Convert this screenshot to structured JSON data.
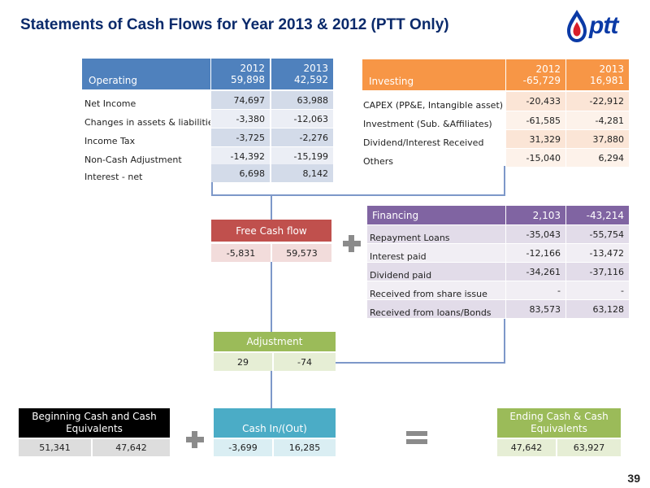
{
  "title": "Statements of Cash Flows for Year 2013 & 2012 (PTT Only)",
  "logo_text": "ptt",
  "page_number": "39",
  "colors": {
    "operating_header": "#4f81bd",
    "operating_row": "#d3dbe9",
    "investing_header": "#f79646",
    "investing_row": "#fbe5d6",
    "financing_header": "#8064a2",
    "financing_row": "#e2dce9",
    "fcf_header": "#c0504d",
    "fcf_row": "#f2dcdb",
    "adjustment_header": "#9bbb59",
    "adjustment_row": "#e6eed5",
    "begin_header": "#000000",
    "begin_row": "#dddddd",
    "cash_header": "#4bacc6",
    "cash_row": "#daeef3",
    "end_header": "#9bbb59",
    "end_row": "#e6eed5"
  },
  "operating": {
    "header": "Operating",
    "y2012_label": "2012",
    "y2012_total": "59,898",
    "y2013_label": "2013",
    "y2013_total": "42,592",
    "rows": [
      {
        "label": "Net Income",
        "v2012": "74,697",
        "v2013": "63,988"
      },
      {
        "label": "Changes in assets & liabilities",
        "v2012": "-3,380",
        "v2013": "-12,063"
      },
      {
        "label": "Income Tax",
        "v2012": "-3,725",
        "v2013": "-2,276"
      },
      {
        "label": "Non-Cash  Adjustment",
        "v2012": "-14,392",
        "v2013": "-15,199"
      },
      {
        "label": "Interest - net",
        "v2012": "6,698",
        "v2013": "8,142"
      }
    ]
  },
  "investing": {
    "header": "Investing",
    "y2012_label": "2012",
    "y2012_total": "-65,729",
    "y2013_label": "2013",
    "y2013_total": "16,981",
    "rows": [
      {
        "label": "CAPEX (PP&E, Intangible asset)",
        "v2012": "-20,433",
        "v2013": "-22,912"
      },
      {
        "label": "Investment (Sub. &Affiliates)",
        "v2012": "-61,585",
        "v2013": "-4,281"
      },
      {
        "label": "Dividend/Interest Received",
        "v2012": "31,329",
        "v2013": "37,880"
      },
      {
        "label": "Others",
        "v2012": "-15,040",
        "v2013": "6,294"
      }
    ]
  },
  "financing": {
    "header": "Financing",
    "v2012": "2,103",
    "v2013": "-43,214",
    "rows": [
      {
        "label": "Repayment  Loans",
        "v2012": "-35,043",
        "v2013": "-55,754"
      },
      {
        "label": "Interest paid",
        "v2012": "-12,166",
        "v2013": "-13,472"
      },
      {
        "label": "Dividend paid",
        "v2012": "-34,261",
        "v2013": "-37,116"
      },
      {
        "label": "Received from share issue",
        "v2012": "-",
        "v2013": "-"
      },
      {
        "label": "Received from loans/Bonds",
        "v2012": "83,573",
        "v2013": "63,128"
      }
    ]
  },
  "free_cash_flow": {
    "header": "Free Cash flow",
    "v2012": "-5,831",
    "v2013": "59,573"
  },
  "adjustment": {
    "header": "Adjustment",
    "v2012": "29",
    "v2013": "-74"
  },
  "beginning_cash": {
    "header_line1": "Beginning Cash and Cash",
    "header_line2": "Equivalents",
    "v2012": "51,341",
    "v2013": "47,642"
  },
  "cash_in_out": {
    "header": "Cash In/(Out)",
    "v2012": "-3,699",
    "v2013": "16,285"
  },
  "ending_cash": {
    "header_line1": "Ending Cash & Cash",
    "header_line2": "Equivalents",
    "v2012": "47,642",
    "v2013": "63,927"
  }
}
